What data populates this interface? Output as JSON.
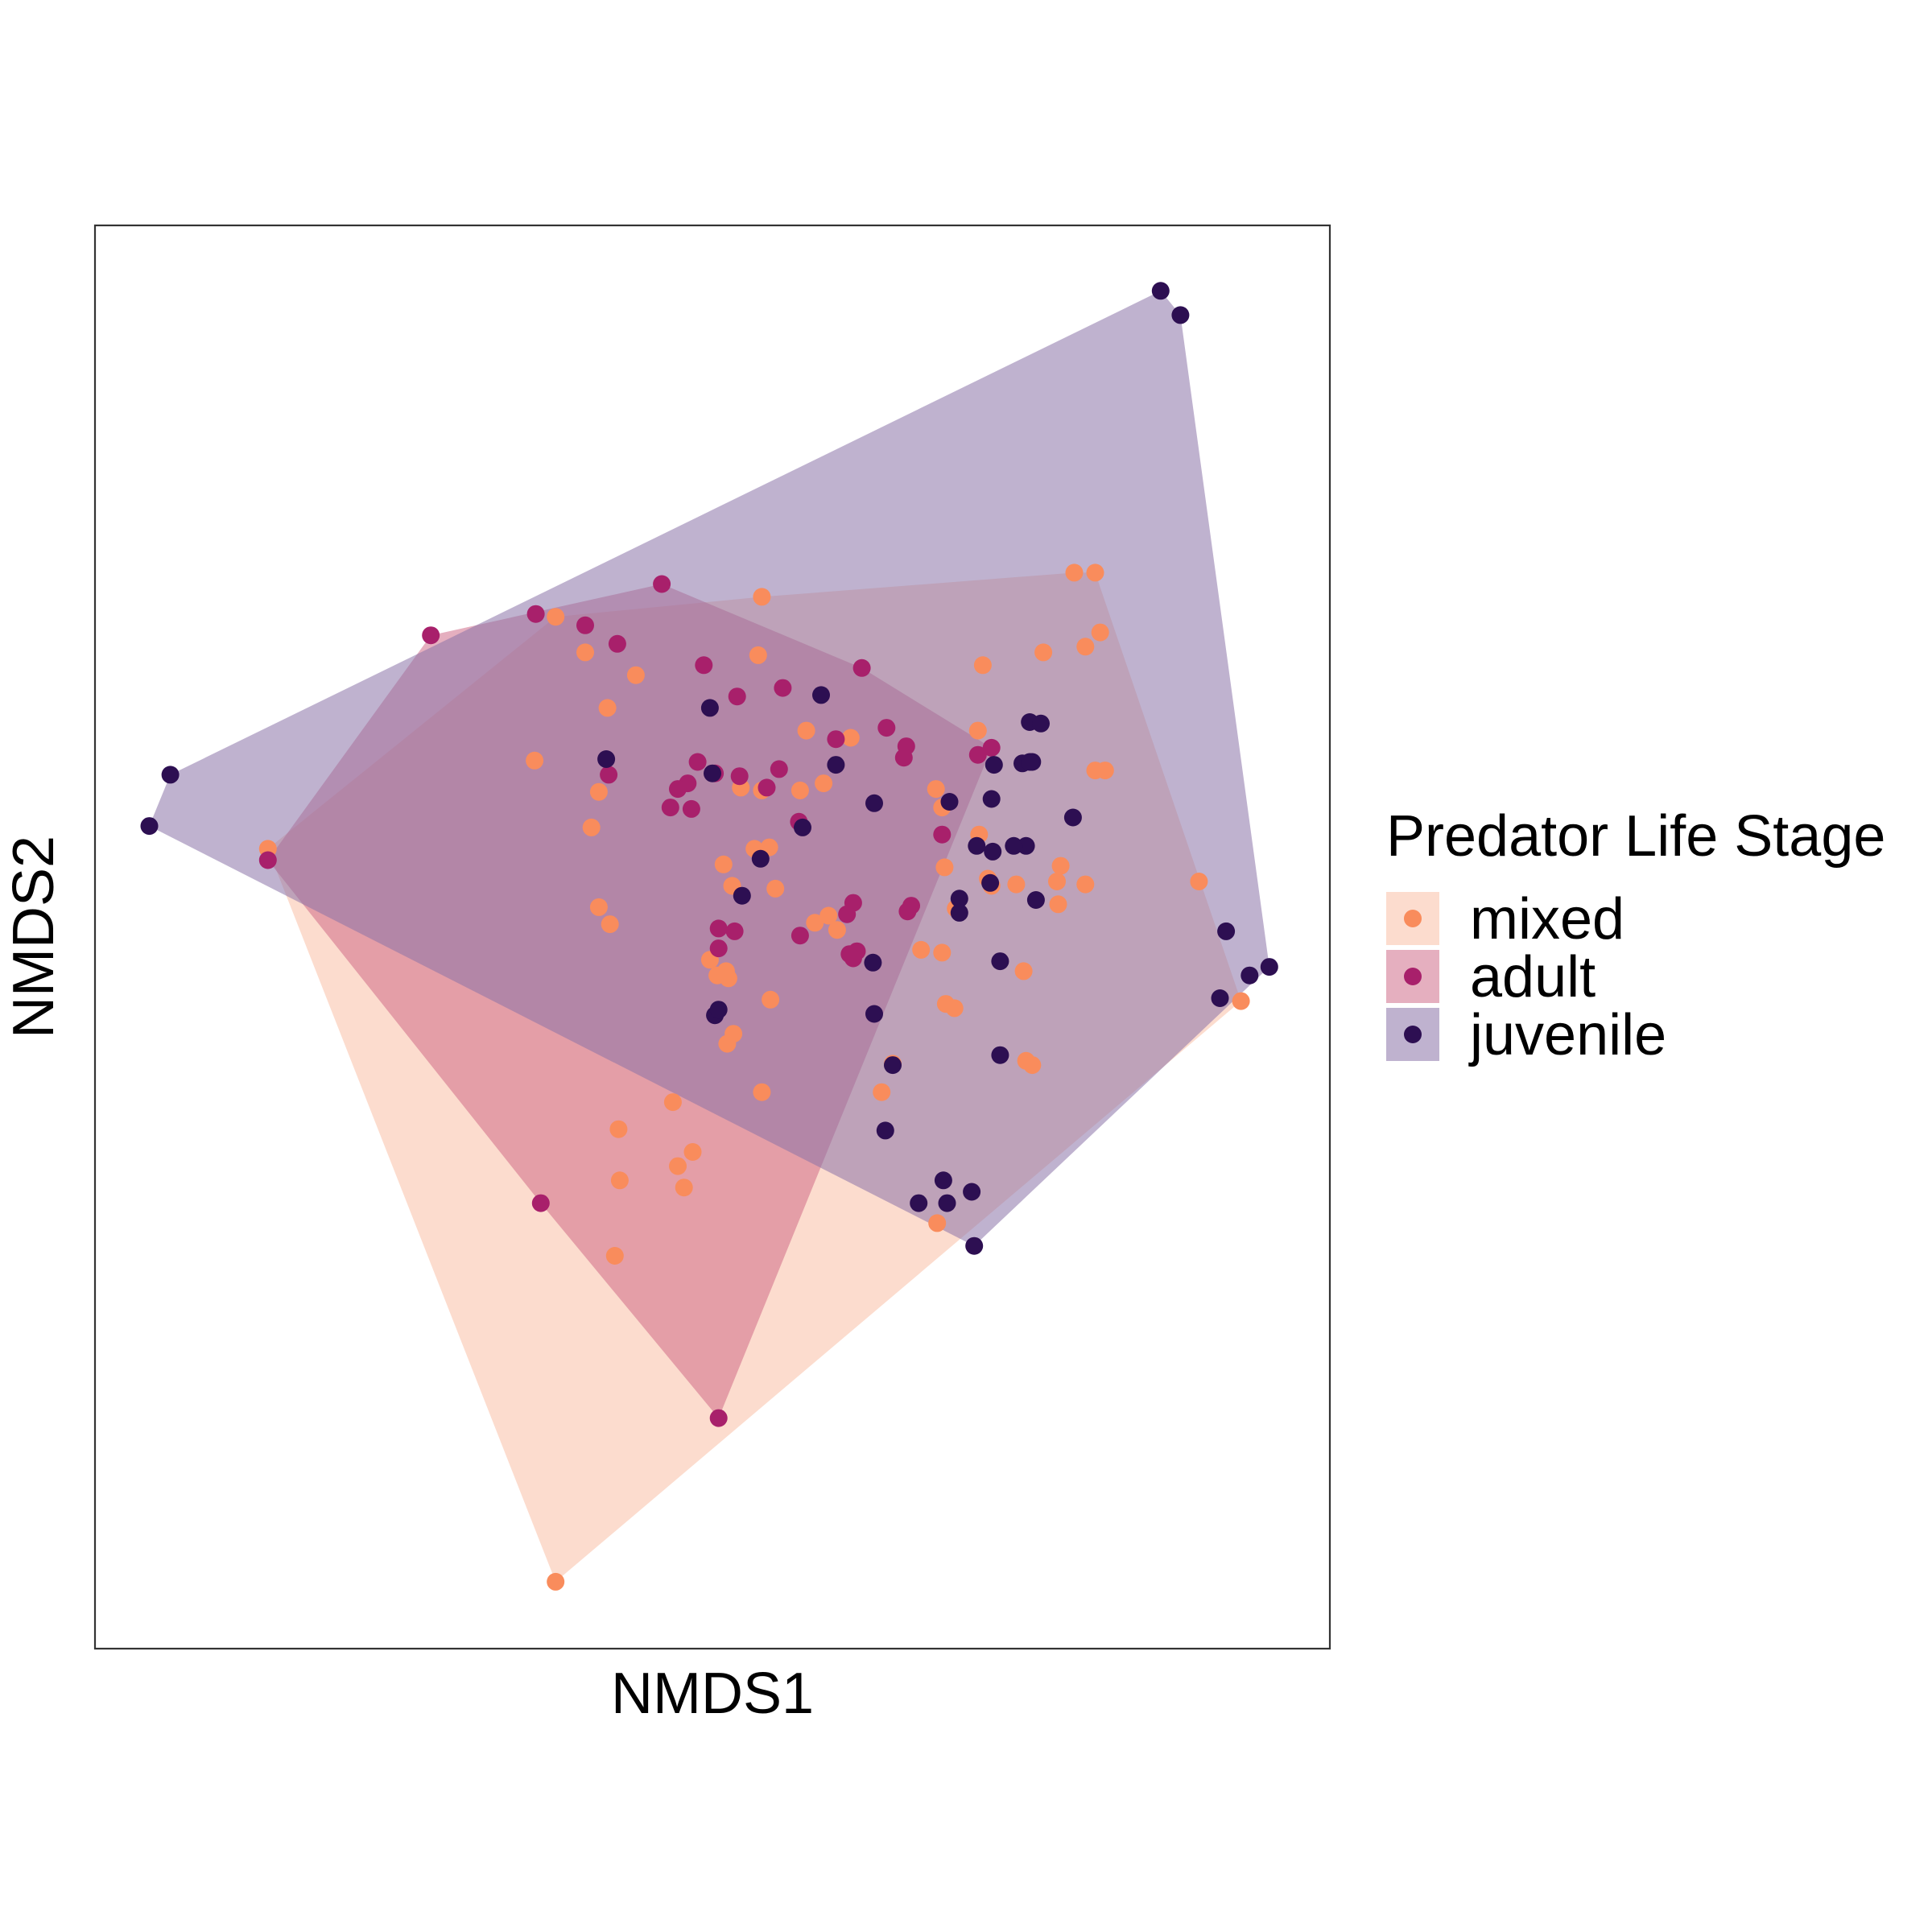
{
  "chart_data": {
    "type": "scatter",
    "title": "",
    "xlabel": "NMDS1",
    "ylabel": "NMDS2",
    "xlim": [
      0,
      100
    ],
    "ylim": [
      0,
      100
    ],
    "ticks_shown": false,
    "grid": false,
    "legend": {
      "title": "Predator Life Stage",
      "placement": "right"
    },
    "series": [
      {
        "name": "mixed",
        "point_color": "#F98C5C",
        "hull_color": "#FBCDB9",
        "hull_opacity": 0.7,
        "points": [
          [
            14.0,
            56.2
          ],
          [
            37.3,
            72.5
          ],
          [
            54.0,
            73.9
          ],
          [
            35.6,
            62.4
          ],
          [
            39.7,
            70.0
          ],
          [
            43.8,
            68.4
          ],
          [
            53.7,
            69.8
          ],
          [
            60.1,
            50.5
          ],
          [
            54.7,
            45.6
          ],
          [
            54.0,
            39.1
          ],
          [
            68.6,
            48.9
          ],
          [
            79.3,
            75.6
          ],
          [
            81.0,
            75.6
          ],
          [
            80.2,
            70.4
          ],
          [
            81.4,
            71.4
          ],
          [
            81.8,
            61.7
          ],
          [
            81.0,
            61.7
          ],
          [
            76.8,
            70.0
          ],
          [
            71.9,
            69.1
          ],
          [
            77.9,
            53.9
          ],
          [
            78.0,
            52.3
          ],
          [
            78.2,
            55.0
          ],
          [
            80.2,
            53.7
          ],
          [
            89.4,
            53.9
          ],
          [
            92.8,
            45.5
          ],
          [
            72.6,
            53.6
          ],
          [
            72.3,
            54.1
          ],
          [
            74.6,
            53.7
          ],
          [
            75.2,
            47.6
          ],
          [
            68.1,
            60.4
          ],
          [
            71.5,
            64.5
          ],
          [
            68.6,
            59.1
          ],
          [
            68.8,
            54.9
          ],
          [
            69.7,
            52.0
          ],
          [
            66.9,
            49.1
          ],
          [
            71.6,
            57.2
          ],
          [
            68.9,
            45.3
          ],
          [
            69.6,
            45.0
          ],
          [
            64.6,
            41.1
          ],
          [
            75.4,
            41.3
          ],
          [
            75.9,
            41.0
          ],
          [
            63.7,
            39.1
          ],
          [
            54.0,
            60.3
          ],
          [
            54.6,
            56.3
          ],
          [
            53.4,
            56.2
          ],
          [
            55.1,
            53.4
          ],
          [
            50.9,
            55.1
          ],
          [
            51.6,
            53.6
          ],
          [
            57.1,
            60.3
          ],
          [
            57.6,
            64.5
          ],
          [
            59.0,
            60.8
          ],
          [
            61.2,
            64.0
          ],
          [
            52.3,
            60.5
          ],
          [
            41.5,
            66.1
          ],
          [
            40.2,
            57.7
          ],
          [
            40.8,
            52.1
          ],
          [
            41.7,
            50.9
          ],
          [
            40.8,
            60.2
          ],
          [
            49.8,
            48.4
          ],
          [
            51.1,
            47.6
          ],
          [
            50.4,
            47.3
          ],
          [
            51.3,
            47.1
          ],
          [
            58.3,
            51.0
          ],
          [
            59.4,
            51.5
          ],
          [
            46.8,
            38.4
          ],
          [
            48.4,
            34.9
          ],
          [
            47.2,
            33.9
          ],
          [
            47.7,
            32.4
          ],
          [
            42.5,
            32.9
          ],
          [
            42.4,
            36.5
          ],
          [
            51.2,
            42.5
          ],
          [
            51.7,
            43.2
          ],
          [
            42.1,
            27.6
          ],
          [
            68.2,
            29.9
          ],
          [
            37.3,
            4.7
          ]
        ]
      },
      {
        "name": "adult",
        "point_color": "#A8206B",
        "hull_color": "#CC5F80",
        "hull_opacity": 0.5,
        "points": [
          [
            14.0,
            55.4
          ],
          [
            27.2,
            71.2
          ],
          [
            35.7,
            72.7
          ],
          [
            39.7,
            71.9
          ],
          [
            42.3,
            70.6
          ],
          [
            45.9,
            74.8
          ],
          [
            49.3,
            69.1
          ],
          [
            52.0,
            66.9
          ],
          [
            55.7,
            67.5
          ],
          [
            62.1,
            68.9
          ],
          [
            64.1,
            64.7
          ],
          [
            60.0,
            63.9
          ],
          [
            55.4,
            61.8
          ],
          [
            50.2,
            61.5
          ],
          [
            48.8,
            62.3
          ],
          [
            52.2,
            61.3
          ],
          [
            48.0,
            60.8
          ],
          [
            47.2,
            60.4
          ],
          [
            54.4,
            60.5
          ],
          [
            46.6,
            59.1
          ],
          [
            48.3,
            59.0
          ],
          [
            41.6,
            61.4
          ],
          [
            57.0,
            58.1
          ],
          [
            65.7,
            63.4
          ],
          [
            65.5,
            62.6
          ],
          [
            72.6,
            63.3
          ],
          [
            71.5,
            62.8
          ],
          [
            68.6,
            57.2
          ],
          [
            66.1,
            52.2
          ],
          [
            65.8,
            51.8
          ],
          [
            61.4,
            52.4
          ],
          [
            60.9,
            51.6
          ],
          [
            50.5,
            50.6
          ],
          [
            51.8,
            50.4
          ],
          [
            57.1,
            50.1
          ],
          [
            50.5,
            49.2
          ],
          [
            61.7,
            49.0
          ],
          [
            61.1,
            48.8
          ],
          [
            61.4,
            48.5
          ],
          [
            36.1,
            31.3
          ],
          [
            50.5,
            16.2
          ]
        ]
      },
      {
        "name": "juvenile",
        "point_color": "#2D0F52",
        "hull_color": "#8B72A8",
        "hull_opacity": 0.55,
        "points": [
          [
            86.3,
            95.4
          ],
          [
            87.9,
            93.7
          ],
          [
            6.1,
            61.4
          ],
          [
            4.4,
            57.8
          ],
          [
            49.8,
            66.1
          ],
          [
            58.8,
            67.0
          ],
          [
            50.0,
            61.5
          ],
          [
            41.4,
            62.5
          ],
          [
            60.0,
            62.1
          ],
          [
            63.1,
            59.4
          ],
          [
            57.3,
            57.7
          ],
          [
            53.9,
            55.5
          ],
          [
            69.2,
            59.5
          ],
          [
            72.6,
            59.7
          ],
          [
            71.4,
            56.4
          ],
          [
            72.7,
            56.0
          ],
          [
            75.4,
            56.4
          ],
          [
            75.1,
            62.2
          ],
          [
            75.9,
            62.3
          ],
          [
            72.8,
            62.1
          ],
          [
            75.7,
            65.1
          ],
          [
            76.6,
            65.0
          ],
          [
            75.7,
            62.3
          ],
          [
            79.2,
            58.4
          ],
          [
            91.6,
            50.4
          ],
          [
            95.1,
            47.9
          ],
          [
            93.5,
            47.3
          ],
          [
            91.1,
            45.7
          ],
          [
            76.2,
            52.6
          ],
          [
            73.3,
            48.3
          ],
          [
            74.4,
            56.4
          ],
          [
            70.0,
            52.7
          ],
          [
            70.0,
            51.7
          ],
          [
            72.5,
            53.8
          ],
          [
            63.0,
            48.2
          ],
          [
            63.1,
            44.6
          ],
          [
            50.2,
            44.5
          ],
          [
            50.5,
            44.9
          ],
          [
            64.0,
            36.4
          ],
          [
            73.3,
            41.7
          ],
          [
            68.7,
            32.9
          ],
          [
            69.0,
            31.3
          ],
          [
            66.7,
            31.3
          ],
          [
            71.0,
            32.1
          ],
          [
            71.2,
            28.3
          ],
          [
            52.4,
            52.9
          ],
          [
            64.6,
            41.0
          ]
        ]
      }
    ]
  }
}
